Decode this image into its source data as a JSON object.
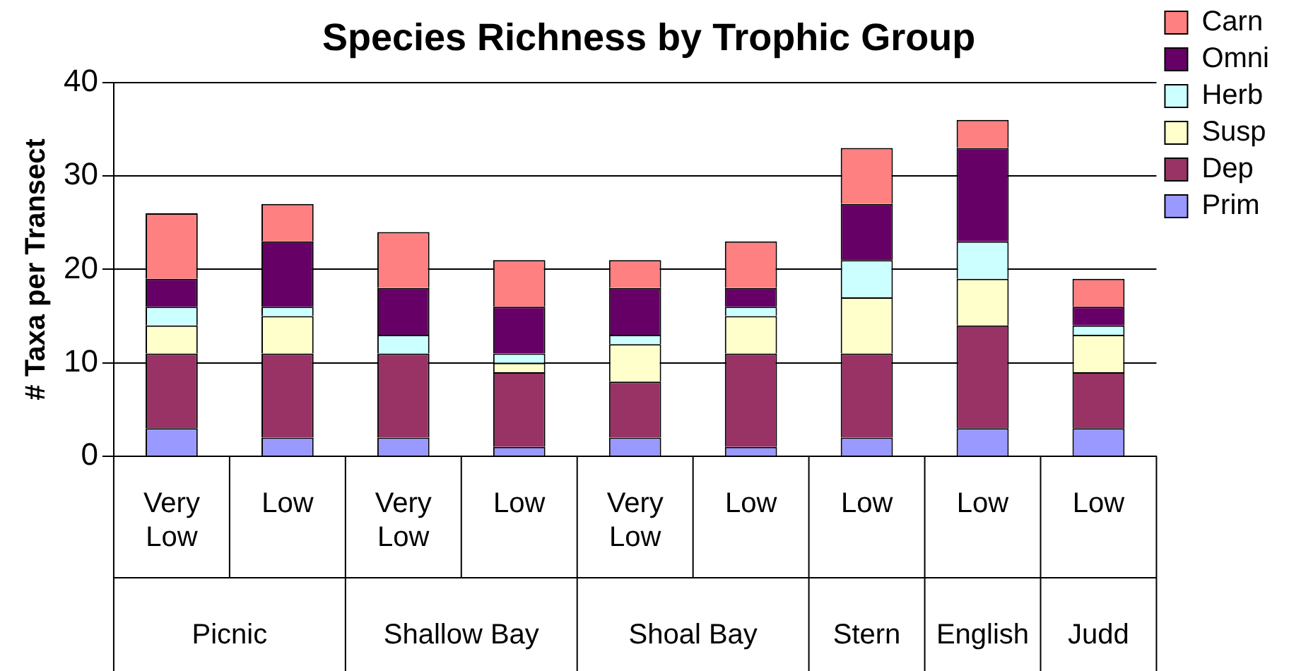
{
  "chart_data": {
    "type": "bar",
    "title": "Species Richness by Trophic Group",
    "ylabel": "# Taxa per Transect",
    "categories": [
      "Very Low",
      "Low",
      "Very Low",
      "Low",
      "Very Low",
      "Low",
      "Low",
      "Low",
      "Low"
    ],
    "annotations": [
      "Picnic",
      "Shallow Bay",
      "Shoal Bay",
      "Stern",
      "English",
      "Judd"
    ],
    "stacked": true,
    "ylim": [
      0,
      40
    ],
    "yticks": [
      0,
      10,
      20,
      30,
      40
    ],
    "grid": "y",
    "legend": "top right",
    "series": [
      {
        "name": "Prim",
        "color": "#9999ff",
        "values": [
          3,
          2,
          2,
          1,
          2,
          1,
          2,
          3,
          3
        ]
      },
      {
        "name": "Dep",
        "color": "#993366",
        "values": [
          8,
          9,
          9,
          8,
          6,
          10,
          9,
          11,
          6
        ]
      },
      {
        "name": "Susp",
        "color": "#ffffcc",
        "values": [
          3,
          4,
          0,
          1,
          4,
          4,
          6,
          5,
          4
        ]
      },
      {
        "name": "Herb",
        "color": "#ccffff",
        "values": [
          2,
          1,
          2,
          1,
          1,
          1,
          4,
          4,
          1
        ]
      },
      {
        "name": "Omni",
        "color": "#660066",
        "values": [
          3,
          7,
          5,
          5,
          5,
          2,
          6,
          10,
          2
        ]
      },
      {
        "name": "Carn",
        "color": "#ff8080",
        "values": [
          7,
          4,
          6,
          5,
          3,
          5,
          6,
          3,
          3
        ]
      }
    ]
  }
}
